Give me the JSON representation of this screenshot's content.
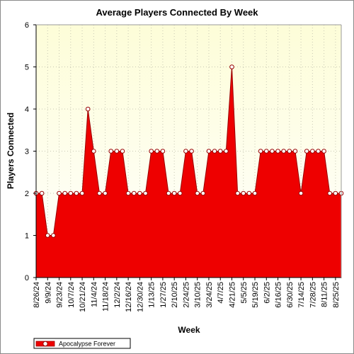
{
  "chart_data": {
    "type": "area",
    "title": "Average Players Connected By Week",
    "xlabel": "Week",
    "ylabel": "Players Connected",
    "ylim": [
      0,
      6
    ],
    "yticks": [
      0,
      1,
      2,
      3,
      4,
      5,
      6
    ],
    "grid": true,
    "legend_position": "bottom-left",
    "colors": {
      "plot_background_top": "#fdfdd8",
      "plot_background_bottom": "#ffffff",
      "area_fill": "#ee0000",
      "area_line": "#990000",
      "marker_fill": "#ffffff",
      "grid": "#c8c8b4"
    },
    "x_tick_labels": [
      "8/26/24",
      "9/9/24",
      "9/23/24",
      "10/7/24",
      "10/21/24",
      "11/4/24",
      "11/18/24",
      "12/2/24",
      "12/16/24",
      "12/30/24",
      "1/13/25",
      "1/27/25",
      "2/10/25",
      "2/24/25",
      "3/10/25",
      "3/24/25",
      "4/7/25",
      "4/21/25",
      "5/5/25",
      "5/19/25",
      "6/2/25",
      "6/16/25",
      "6/30/25",
      "7/14/25",
      "7/28/25",
      "8/11/25",
      "8/25/25"
    ],
    "series": [
      {
        "name": "Apocalypse Forever",
        "values": [
          2,
          2,
          1,
          1,
          2,
          2,
          2,
          2,
          2,
          4,
          3,
          2,
          2,
          3,
          3,
          3,
          2,
          2,
          2,
          2,
          3,
          3,
          3,
          2,
          2,
          2,
          3,
          3,
          2,
          2,
          3,
          3,
          3,
          3,
          5,
          2,
          2,
          2,
          2,
          3,
          3,
          3,
          3,
          3,
          3,
          3,
          2,
          3,
          3,
          3,
          3,
          2,
          2,
          2
        ]
      }
    ]
  }
}
